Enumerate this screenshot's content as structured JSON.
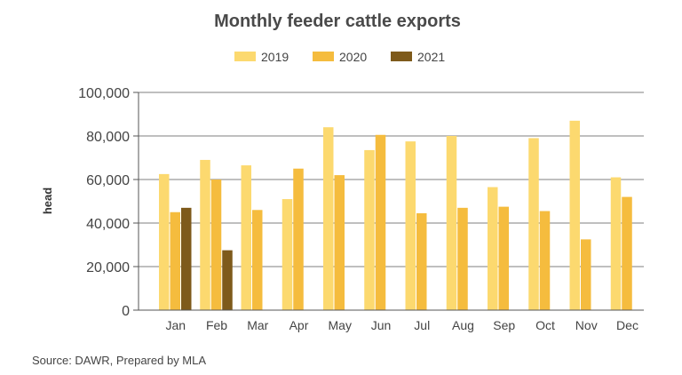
{
  "chart_data": {
    "type": "bar",
    "title": "Monthly feeder cattle exports",
    "ylabel": "head",
    "xlabel": "",
    "ylim": [
      0,
      100000
    ],
    "yticks": [
      0,
      20000,
      40000,
      60000,
      80000,
      100000
    ],
    "ytick_labels": [
      "0",
      "20,000",
      "40,000",
      "60,000",
      "80,000",
      "100,000"
    ],
    "grid": true,
    "legend_position": "top",
    "categories": [
      "Jan",
      "Feb",
      "Mar",
      "Apr",
      "May",
      "Jun",
      "Jul",
      "Aug",
      "Sep",
      "Oct",
      "Nov",
      "Dec"
    ],
    "series": [
      {
        "name": "2019",
        "color": "#fcd96f",
        "values": [
          62500,
          69000,
          66500,
          51000,
          84000,
          73500,
          77500,
          80000,
          56500,
          79000,
          87000,
          61000
        ]
      },
      {
        "name": "2020",
        "color": "#f5bc3e",
        "values": [
          45000,
          60000,
          46000,
          65000,
          62000,
          80500,
          44500,
          47000,
          47500,
          45500,
          32500,
          52000
        ]
      },
      {
        "name": "2021",
        "color": "#7e5a1b",
        "values": [
          47000,
          27500,
          null,
          null,
          null,
          null,
          null,
          null,
          null,
          null,
          null,
          null
        ]
      }
    ],
    "source": "Source: DAWR, Prepared by MLA"
  }
}
